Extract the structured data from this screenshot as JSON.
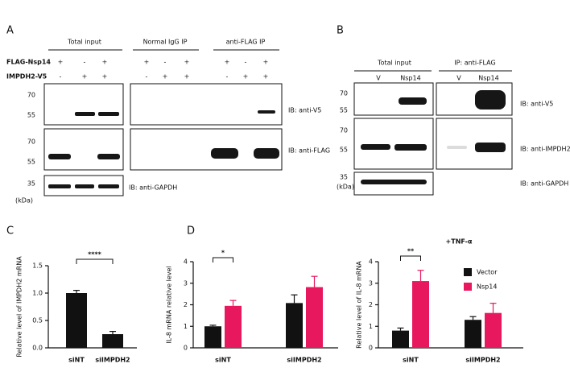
{
  "figure": {
    "panel_a": {
      "label": "A",
      "headers": [
        "Total input",
        "Normal IgG IP",
        "anti-FLAG IP"
      ],
      "lane_rows": [
        {
          "label": "FLAG-Nsp14",
          "signs": [
            "+",
            "-",
            "+",
            "+",
            "-",
            "+",
            "+",
            "-",
            "+"
          ]
        },
        {
          "label": "IMPDH2-V5",
          "signs": [
            "-",
            "+",
            "+",
            "-",
            "+",
            "+",
            "-",
            "+",
            "+"
          ]
        }
      ],
      "markers": [
        "70",
        "55",
        "70",
        "55",
        "35",
        "(kDa)"
      ],
      "blots": [
        "IB: anti-V5",
        "IB: anti-FLAG",
        "IB: anti-GAPDH"
      ]
    },
    "panel_b": {
      "label": "B",
      "headers": [
        "Total input",
        "IP: anti-FLAG"
      ],
      "lanes": [
        "V",
        "Nsp14",
        "V",
        "Nsp14"
      ],
      "markers": [
        "70",
        "55",
        "70",
        "55",
        "35",
        "(kDa)"
      ],
      "blots": [
        "IB: anti-V5",
        "IB: anti-IMPDH2",
        "IB: anti-GAPDH"
      ]
    },
    "panel_c_label": "C",
    "panel_d_label": "D"
  },
  "chart_data": [
    {
      "type": "bar",
      "y_label": "Relative level of IMPDH2 mRNA",
      "categories": [
        "siNT",
        "siIMPDH2"
      ],
      "values": [
        1.0,
        0.25
      ],
      "errors": [
        0.05,
        0.05
      ],
      "color": "#111111",
      "ylim": [
        0,
        1.5
      ],
      "yticks": [
        {
          "value": 0,
          "label": "0.0"
        },
        {
          "value": 0.5,
          "label": "0.5"
        },
        {
          "value": 1,
          "label": "1.0"
        },
        {
          "value": 1.5,
          "label": "1.5"
        }
      ],
      "significance": "****"
    },
    {
      "type": "bar",
      "y_label": "IL-8 mRNA relative level",
      "categories": [
        "siNT",
        "siIMPDH2"
      ],
      "series": [
        {
          "name": "Vector",
          "color": "#111111",
          "values": [
            1.0,
            2.08
          ],
          "errors": [
            0.05,
            0.38
          ]
        },
        {
          "name": "Nsp14",
          "color": "#e8185e",
          "values": [
            1.95,
            2.82
          ],
          "errors": [
            0.25,
            0.5
          ]
        }
      ],
      "ylim": [
        0,
        4
      ],
      "yticks": [
        0,
        1,
        2,
        3,
        4
      ],
      "significance": "*"
    },
    {
      "type": "bar",
      "title": "+TNF-α",
      "y_label": "Relative level of IL-8 mRNA",
      "categories": [
        "siNT",
        "siIMPDH2"
      ],
      "series": [
        {
          "name": "Vector",
          "color": "#111111",
          "values": [
            0.8,
            1.3
          ],
          "errors": [
            0.12,
            0.15
          ]
        },
        {
          "name": "Nsp14",
          "color": "#e8185e",
          "values": [
            3.1,
            1.62
          ],
          "errors": [
            0.5,
            0.45
          ]
        }
      ],
      "ylim": [
        0,
        4
      ],
      "yticks": [
        0,
        1,
        2,
        3,
        4
      ],
      "significance": "**",
      "legend": "upper right"
    }
  ]
}
